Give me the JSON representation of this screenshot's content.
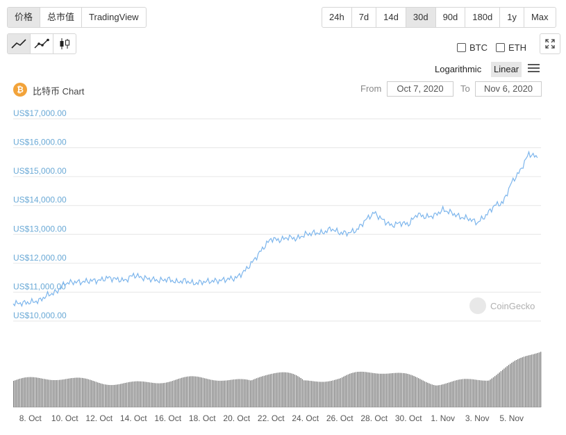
{
  "tabs": [
    "价格",
    "总市值",
    "TradingView"
  ],
  "ranges": [
    "24h",
    "7d",
    "14d",
    "30d",
    "90d",
    "180d",
    "1y",
    "Max"
  ],
  "active_range": "30d",
  "chart_types": [
    "line-chart-icon",
    "marker-line-chart-icon",
    "candlestick-icon"
  ],
  "compare": [
    "BTC",
    "ETH"
  ],
  "scale": {
    "log_label": "Logarithmic",
    "linear_label": "Linear",
    "active": "Linear"
  },
  "coin": {
    "logo_glyph": "₿",
    "title": "比特币 Chart"
  },
  "date_range": {
    "from_label": "From",
    "from_value": "Oct 7, 2020",
    "to_label": "To",
    "to_value": "Nov 6, 2020"
  },
  "watermark": "CoinGecko",
  "colors": {
    "line": "#7cb5ec",
    "axis_text": "#6aa9d6",
    "volume": "#777777",
    "logo": "#f2a33a"
  },
  "chart_data": {
    "type": "line",
    "title": "比特币 Chart",
    "y_ticks": [
      "US$10,000.00",
      "US$11,000.00",
      "US$12,000.00",
      "US$13,000.00",
      "US$14,000.00",
      "US$15,000.00",
      "US$16,000.00",
      "US$17,000.00"
    ],
    "ylim": [
      10000,
      17000
    ],
    "x_ticks": [
      "8. Oct",
      "10. Oct",
      "12. Oct",
      "14. Oct",
      "16. Oct",
      "18. Oct",
      "20. Oct",
      "22. Oct",
      "24. Oct",
      "26. Oct",
      "28. Oct",
      "30. Oct",
      "1. Nov",
      "3. Nov",
      "5. Nov"
    ],
    "xlim": [
      "2020-10-07",
      "2020-11-06"
    ],
    "grid": true,
    "series": [
      {
        "values": [
          [
            "2020-10-07",
            10600
          ],
          [
            "2020-10-07T12",
            10620
          ],
          [
            "2020-10-08",
            10650
          ],
          [
            "2020-10-08T12",
            10700
          ],
          [
            "2020-10-09",
            10900
          ],
          [
            "2020-10-09T12",
            11000
          ],
          [
            "2020-10-10",
            11300
          ],
          [
            "2020-10-10T12",
            11350
          ],
          [
            "2020-10-11",
            11350
          ],
          [
            "2020-10-11T12",
            11400
          ],
          [
            "2020-10-12",
            11400
          ],
          [
            "2020-10-12T12",
            11500
          ],
          [
            "2020-10-13",
            11450
          ],
          [
            "2020-10-13T12",
            11400
          ],
          [
            "2020-10-14",
            11600
          ],
          [
            "2020-10-14T12",
            11500
          ],
          [
            "2020-10-15",
            11450
          ],
          [
            "2020-10-15T12",
            11400
          ],
          [
            "2020-10-16",
            11450
          ],
          [
            "2020-10-16T12",
            11350
          ],
          [
            "2020-10-17",
            11400
          ],
          [
            "2020-10-17T12",
            11300
          ],
          [
            "2020-10-18",
            11350
          ],
          [
            "2020-10-18T12",
            11380
          ],
          [
            "2020-10-19",
            11400
          ],
          [
            "2020-10-19T12",
            11450
          ],
          [
            "2020-10-20",
            11500
          ],
          [
            "2020-10-20T12",
            11750
          ],
          [
            "2020-10-21",
            12100
          ],
          [
            "2020-10-21T12",
            12500
          ],
          [
            "2020-10-22",
            12850
          ],
          [
            "2020-10-22T12",
            12800
          ],
          [
            "2020-10-23",
            12900
          ],
          [
            "2020-10-23T12",
            12850
          ],
          [
            "2020-10-24",
            13000
          ],
          [
            "2020-10-24T12",
            13050
          ],
          [
            "2020-10-25",
            13050
          ],
          [
            "2020-10-25T12",
            13200
          ],
          [
            "2020-10-26",
            13050
          ],
          [
            "2020-10-26T12",
            13050
          ],
          [
            "2020-10-27",
            13150
          ],
          [
            "2020-10-27T12",
            13500
          ],
          [
            "2020-10-28",
            13750
          ],
          [
            "2020-10-28T12",
            13500
          ],
          [
            "2020-10-29",
            13300
          ],
          [
            "2020-10-29T12",
            13400
          ],
          [
            "2020-10-30",
            13350
          ],
          [
            "2020-10-30T12",
            13700
          ],
          [
            "2020-10-31",
            13600
          ],
          [
            "2020-10-31T12",
            13650
          ],
          [
            "2020-11-01",
            13850
          ],
          [
            "2020-11-01T12",
            13750
          ],
          [
            "2020-11-02",
            13600
          ],
          [
            "2020-11-02T12",
            13550
          ],
          [
            "2020-11-03",
            13400
          ],
          [
            "2020-11-03T12",
            13650
          ],
          [
            "2020-11-04",
            14000
          ],
          [
            "2020-11-04T12",
            14100
          ],
          [
            "2020-11-05",
            14800
          ],
          [
            "2020-11-05T12",
            15200
          ],
          [
            "2020-11-06",
            15800
          ],
          [
            "2020-11-06T12",
            15650
          ]
        ]
      }
    ]
  }
}
